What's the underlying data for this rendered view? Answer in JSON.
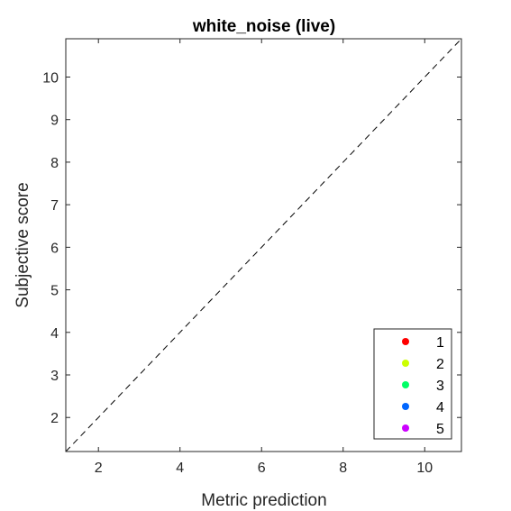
{
  "chart_data": {
    "type": "scatter",
    "title": "white_noise (live)",
    "xlabel": "Metric prediction",
    "ylabel": "Subjective score",
    "xlim": [
      1.2,
      10.9
    ],
    "ylim": [
      1.2,
      10.9
    ],
    "xticks": [
      "2",
      "4",
      "6",
      "8",
      "10"
    ],
    "yticks": [
      "2",
      "3",
      "4",
      "5",
      "6",
      "7",
      "8",
      "9",
      "10"
    ],
    "grid": false,
    "legend_position": "bottom-right",
    "reference_line": {
      "style": "dashed",
      "from": [
        1.2,
        1.2
      ],
      "to": [
        10.9,
        10.9
      ]
    },
    "series": [
      {
        "name": "1",
        "color": "#ff0000",
        "points": []
      },
      {
        "name": "2",
        "color": "#ccff00",
        "points": []
      },
      {
        "name": "3",
        "color": "#00ff66",
        "points": []
      },
      {
        "name": "4",
        "color": "#0066ff",
        "points": []
      },
      {
        "name": "5",
        "color": "#cc00ff",
        "points": []
      }
    ]
  }
}
